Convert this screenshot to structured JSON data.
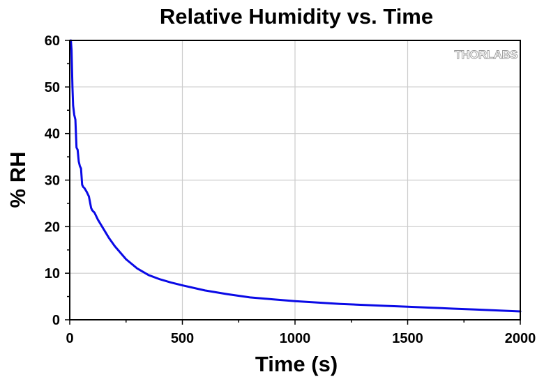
{
  "chart_data": {
    "type": "line",
    "title": "Relative Humidity vs. Time",
    "xlabel": "Time (s)",
    "ylabel": "% RH",
    "xlim": [
      0,
      2000
    ],
    "ylim": [
      0,
      60
    ],
    "x_ticks": [
      0,
      500,
      1000,
      1500,
      2000
    ],
    "y_ticks": [
      0,
      10,
      20,
      30,
      40,
      50,
      60
    ],
    "grid": true,
    "series_color": "#0a0ae6",
    "grid_color": "#cccccc",
    "watermark": "THORLABS",
    "series": [
      {
        "x": [
          5,
          8,
          10,
          12,
          15,
          20,
          25,
          30,
          35,
          40,
          45,
          50,
          55,
          60,
          65,
          75,
          85,
          95,
          100,
          110,
          125,
          150,
          175,
          200,
          250,
          300,
          350,
          400,
          450,
          500,
          600,
          700,
          800,
          900,
          1000,
          1100,
          1200,
          1300,
          1400,
          1500,
          1600,
          1700,
          1800,
          1900,
          2000
        ],
        "y": [
          60,
          58,
          54,
          50,
          46,
          44,
          43,
          37,
          36.5,
          34,
          33,
          32.5,
          29,
          28.5,
          28.3,
          27.5,
          26.5,
          24,
          23.5,
          23,
          21.5,
          19.5,
          17.5,
          15.8,
          13,
          11,
          9.6,
          8.7,
          8.0,
          7.4,
          6.3,
          5.5,
          4.8,
          4.4,
          4.0,
          3.7,
          3.4,
          3.2,
          3.0,
          2.8,
          2.6,
          2.4,
          2.2,
          2.0,
          1.8
        ]
      }
    ]
  }
}
